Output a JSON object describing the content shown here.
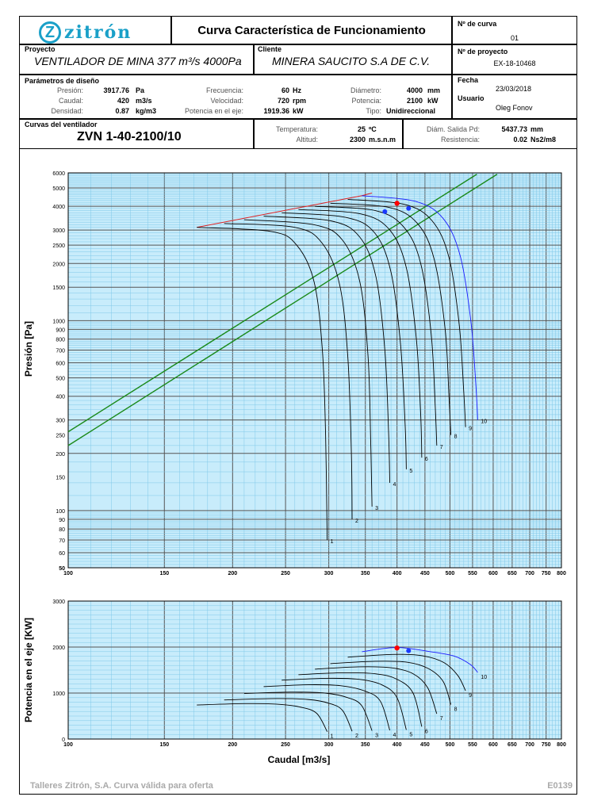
{
  "header": {
    "logo_text": "zitrón",
    "title": "Curva Característica de Funcionamiento",
    "curve_no_label": "Nº de curva",
    "curve_no": "01",
    "project_no_label": "Nº de proyecto",
    "project_no": "EX-18-10468",
    "project_label": "Proyecto",
    "project": "VENTILADOR DE MINA 377 m³/s 4000Pa",
    "client_label": "Cliente",
    "client": "MINERA SAUCITO S.A DE C.V.",
    "date_label": "Fecha",
    "date": "23/03/2018",
    "user_label": "Usuario",
    "user": "Oleg Fonov"
  },
  "params": {
    "title": "Parámetros de diseño",
    "presion_label": "Presión:",
    "presion_val": "3917.76",
    "presion_unit": "Pa",
    "caudal_label": "Caudal:",
    "caudal_val": "420",
    "caudal_unit": "m3/s",
    "densidad_label": "Densidad:",
    "densidad_val": "0.87",
    "densidad_unit": "kg/m3",
    "frecuencia_label": "Frecuencia:",
    "frecuencia_val": "60",
    "frecuencia_unit": "Hz",
    "velocidad_label": "Velocidad:",
    "velocidad_val": "720",
    "velocidad_unit": "rpm",
    "potencia_eje_label": "Potencia en el eje:",
    "potencia_eje_val": "1919.36",
    "potencia_eje_unit": "kW",
    "diametro_label": "Diámetro:",
    "diametro_val": "4000",
    "diametro_unit": "mm",
    "potencia_label": "Potencia:",
    "potencia_val": "2100",
    "potencia_unit": "kW",
    "tipo_label": "Tipo:",
    "tipo_val": "Unidireccional"
  },
  "fan": {
    "title": "Curvas del ventilador",
    "model": "ZVN 1-40-2100/10",
    "temperatura_label": "Temperatura:",
    "temperatura_val": "25",
    "temperatura_unit": "ºC",
    "altitud_label": "Altitud:",
    "altitud_val": "2300",
    "altitud_unit": "m.s.n.m",
    "diam_salida_label": "Diám. Salida Pd:",
    "diam_salida_val": "5437.73",
    "diam_salida_unit": "mm",
    "resistencia_label": "Resistencia:",
    "resistencia_val": "0.02",
    "resistencia_unit": "Ns2/m8"
  },
  "footer": {
    "left": "Talleres Zitrón, S.A. Curva válida para oferta",
    "right": "E0139"
  },
  "colors": {
    "grid_bg": "#c8ecfb",
    "grid_minor": "#7fc8e8",
    "grid_major": "#555555",
    "fan_curve": "#000000",
    "fan_curve_10": "#1a1aff",
    "system_curve": "#1a8a1a",
    "stall_line": "#e02020",
    "duty_point": "#ff0000",
    "op_point": "#1a3aff"
  },
  "chart_data": [
    {
      "type": "line",
      "xscale": "log",
      "yscale": "log",
      "ylabel": "Presión  [Pa]",
      "xlim": [
        100,
        800
      ],
      "ylim": [
        50,
        6000
      ],
      "grid": true,
      "xticks": [
        "100",
        "150",
        "200",
        "250",
        "300",
        "350",
        "400",
        "450",
        "500",
        "550",
        "600",
        "650",
        "700",
        "750",
        "800"
      ],
      "xtick_values": [
        100,
        150,
        200,
        250,
        300,
        350,
        400,
        450,
        500,
        550,
        600,
        650,
        700,
        750,
        800
      ],
      "yticks": [
        "50",
        "60",
        "70",
        "80",
        "90",
        "100",
        "150",
        "200",
        "250",
        "300",
        "400",
        "500",
        "600",
        "700",
        "800",
        "900",
        "1000",
        "1500",
        "2000",
        "2500",
        "3000",
        "4000",
        "5000",
        "6000"
      ],
      "ytick_values": [
        50,
        60,
        70,
        80,
        90,
        100,
        150,
        200,
        250,
        300,
        400,
        500,
        600,
        700,
        800,
        900,
        1000,
        1500,
        2000,
        2500,
        3000,
        4000,
        5000,
        6000
      ],
      "series": [
        {
          "name": "1",
          "points": [
            [
              172,
              3100
            ],
            [
              235,
              2950
            ],
            [
              262,
              2500
            ],
            [
              282,
              1600
            ],
            [
              292,
              700
            ],
            [
              296,
              250
            ],
            [
              298,
              70
            ]
          ]
        },
        {
          "name": "2",
          "points": [
            [
              193,
              3250
            ],
            [
              260,
              3100
            ],
            [
              292,
              2550
            ],
            [
              314,
              1550
            ],
            [
              325,
              650
            ],
            [
              330,
              200
            ],
            [
              331,
              90
            ]
          ]
        },
        {
          "name": "3",
          "points": [
            [
              210,
              3400
            ],
            [
              282,
              3200
            ],
            [
              318,
              2650
            ],
            [
              342,
              1600
            ],
            [
              354,
              650
            ],
            [
              358,
              230
            ],
            [
              360,
              105
            ]
          ]
        },
        {
          "name": "4",
          "points": [
            [
              228,
              3550
            ],
            [
              303,
              3350
            ],
            [
              342,
              2750
            ],
            [
              366,
              1700
            ],
            [
              380,
              700
            ],
            [
              386,
              260
            ],
            [
              388,
              140
            ]
          ]
        },
        {
          "name": "5",
          "points": [
            [
              246,
              3700
            ],
            [
              322,
              3500
            ],
            [
              364,
              2900
            ],
            [
              390,
              1800
            ],
            [
              406,
              750
            ],
            [
              414,
              280
            ],
            [
              416,
              165
            ]
          ]
        },
        {
          "name": "6",
          "points": [
            [
              264,
              3850
            ],
            [
              343,
              3650
            ],
            [
              388,
              3000
            ],
            [
              416,
              1900
            ],
            [
              434,
              800
            ],
            [
              442,
              320
            ],
            [
              444,
              190
            ]
          ]
        },
        {
          "name": "7",
          "points": [
            [
              283,
              4000
            ],
            [
              365,
              3800
            ],
            [
              412,
              3100
            ],
            [
              442,
              2000
            ],
            [
              462,
              850
            ],
            [
              470,
              350
            ],
            [
              473,
              220
            ]
          ]
        },
        {
          "name": "8",
          "points": [
            [
              302,
              4150
            ],
            [
              386,
              3950
            ],
            [
              436,
              3250
            ],
            [
              468,
              2100
            ],
            [
              490,
              900
            ],
            [
              498,
              400
            ],
            [
              502,
              250
            ]
          ]
        },
        {
          "name": "9",
          "points": [
            [
              325,
              4350
            ],
            [
              412,
              4100
            ],
            [
              464,
              3350
            ],
            [
              498,
              2150
            ],
            [
              520,
              950
            ],
            [
              530,
              420
            ],
            [
              534,
              275
            ]
          ]
        },
        {
          "name": "10",
          "points": [
            [
              345,
              4550
            ],
            [
              432,
              4250
            ],
            [
              486,
              3450
            ],
            [
              522,
              2200
            ],
            [
              546,
              1000
            ],
            [
              558,
              450
            ],
            [
              562,
              300
            ]
          ]
        }
      ],
      "system_curves": [
        {
          "points": [
            [
              100,
              260
            ],
            [
              560,
              5900
            ]
          ]
        },
        {
          "points": [
            [
              100,
              220
            ],
            [
              610,
              5900
            ]
          ]
        }
      ],
      "stall_line": {
        "points": [
          [
            172,
            3100
          ],
          [
            345,
            4550
          ],
          [
            360,
            4700
          ]
        ]
      },
      "duty_point": [
        400,
        4150
      ],
      "operating_points": [
        [
          380,
          3750
        ],
        [
          420,
          3900
        ]
      ]
    },
    {
      "type": "line",
      "xlabel": "Caudal [m3/s]",
      "ylabel": "Potencia en el eje [KW]",
      "xscale": "log",
      "xlim": [
        100,
        800
      ],
      "ylim": [
        0,
        3000
      ],
      "grid": true,
      "yticks": [
        "0",
        "1000",
        "2000",
        "3000"
      ],
      "ytick_values": [
        0,
        1000,
        2000,
        3000
      ],
      "series": [
        {
          "name": "1",
          "points": [
            [
              172,
              740
            ],
            [
              210,
              770
            ],
            [
              240,
              760
            ],
            [
              265,
              700
            ],
            [
              285,
              560
            ],
            [
              298,
              160
            ]
          ]
        },
        {
          "name": "2",
          "points": [
            [
              193,
              850
            ],
            [
              240,
              880
            ],
            [
              275,
              860
            ],
            [
              300,
              780
            ],
            [
              318,
              620
            ],
            [
              331,
              170
            ]
          ]
        },
        {
          "name": "3",
          "points": [
            [
              210,
              990
            ],
            [
              255,
              1020
            ],
            [
              295,
              1000
            ],
            [
              325,
              900
            ],
            [
              345,
              720
            ],
            [
              360,
              180
            ]
          ]
        },
        {
          "name": "4",
          "points": [
            [
              228,
              1140
            ],
            [
              275,
              1180
            ],
            [
              315,
              1160
            ],
            [
              350,
              1040
            ],
            [
              373,
              820
            ],
            [
              388,
              190
            ]
          ]
        },
        {
          "name": "5",
          "points": [
            [
              246,
              1280
            ],
            [
              295,
              1320
            ],
            [
              340,
              1300
            ],
            [
              375,
              1180
            ],
            [
              400,
              900
            ],
            [
              416,
              200
            ]
          ]
        },
        {
          "name": "6",
          "points": [
            [
              264,
              1400
            ],
            [
              318,
              1440
            ],
            [
              365,
              1420
            ],
            [
              400,
              1300
            ],
            [
              428,
              1000
            ],
            [
              444,
              270
            ]
          ]
        },
        {
          "name": "7",
          "points": [
            [
              283,
              1520
            ],
            [
              340,
              1570
            ],
            [
              390,
              1550
            ],
            [
              428,
              1420
            ],
            [
              455,
              1120
            ],
            [
              473,
              550
            ]
          ]
        },
        {
          "name": "8",
          "points": [
            [
              302,
              1640
            ],
            [
              365,
              1690
            ],
            [
              418,
              1670
            ],
            [
              457,
              1530
            ],
            [
              486,
              1250
            ],
            [
              502,
              750
            ]
          ]
        },
        {
          "name": "9",
          "points": [
            [
              325,
              1780
            ],
            [
              392,
              1840
            ],
            [
              446,
              1810
            ],
            [
              488,
              1660
            ],
            [
              517,
              1380
            ],
            [
              534,
              1050
            ]
          ]
        },
        {
          "name": "10",
          "points": [
            [
              345,
              1900
            ],
            [
              400,
              1990
            ],
            [
              460,
              1900
            ],
            [
              510,
              1800
            ],
            [
              545,
              1620
            ],
            [
              562,
              1450
            ]
          ]
        }
      ],
      "duty_point": [
        400,
        1980
      ],
      "operating_points": [
        [
          420,
          1920
        ]
      ]
    }
  ]
}
